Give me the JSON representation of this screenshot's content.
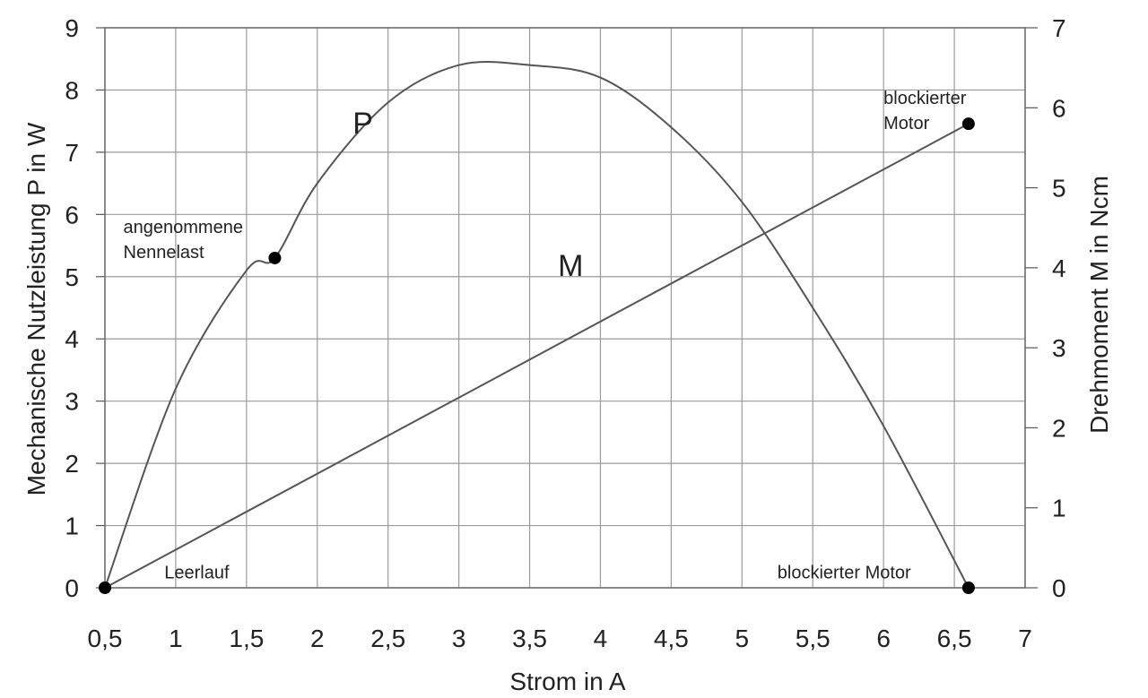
{
  "chart_data": {
    "type": "line",
    "xlabel": "Strom in A",
    "ylabel_left": "Mechanische Nutzleistung P in W",
    "ylabel_right": "Drehmoment M in Ncm",
    "xlim": [
      0.5,
      7
    ],
    "ylim_left": [
      0,
      9
    ],
    "ylim_right": [
      0,
      7
    ],
    "grid": true,
    "x_ticks": [
      {
        "value": 0.5,
        "label": "0,5"
      },
      {
        "value": 1,
        "label": "1"
      },
      {
        "value": 1.5,
        "label": "1,5"
      },
      {
        "value": 2,
        "label": "2"
      },
      {
        "value": 2.5,
        "label": "2,5"
      },
      {
        "value": 3,
        "label": "3"
      },
      {
        "value": 3.5,
        "label": "3,5"
      },
      {
        "value": 4,
        "label": "4"
      },
      {
        "value": 4.5,
        "label": "4,5"
      },
      {
        "value": 5,
        "label": "5"
      },
      {
        "value": 5.5,
        "label": "5,5"
      },
      {
        "value": 6,
        "label": "6"
      },
      {
        "value": 6.5,
        "label": "6,5"
      },
      {
        "value": 7,
        "label": "7"
      }
    ],
    "y_ticks_left": [
      {
        "value": 0,
        "label": "0"
      },
      {
        "value": 1,
        "label": "1"
      },
      {
        "value": 2,
        "label": "2"
      },
      {
        "value": 3,
        "label": "3"
      },
      {
        "value": 4,
        "label": "4"
      },
      {
        "value": 5,
        "label": "5"
      },
      {
        "value": 6,
        "label": "6"
      },
      {
        "value": 7,
        "label": "7"
      },
      {
        "value": 8,
        "label": "8"
      },
      {
        "value": 9,
        "label": "9"
      }
    ],
    "y_ticks_right": [
      {
        "value": 0,
        "label": "0"
      },
      {
        "value": 1,
        "label": "1"
      },
      {
        "value": 2,
        "label": "2"
      },
      {
        "value": 3,
        "label": "3"
      },
      {
        "value": 4,
        "label": "4"
      },
      {
        "value": 5,
        "label": "5"
      },
      {
        "value": 6,
        "label": "6"
      },
      {
        "value": 7,
        "label": "7"
      }
    ],
    "series": [
      {
        "name": "P",
        "axis": "left",
        "shape": "parabola",
        "x": [
          0.5,
          1.0,
          1.5,
          1.7,
          2.0,
          2.5,
          3.0,
          3.5,
          4.0,
          4.5,
          5.0,
          5.5,
          6.0,
          6.6
        ],
        "y": [
          0.0,
          3.2,
          5.1,
          5.3,
          6.5,
          7.8,
          8.4,
          8.4,
          8.2,
          7.4,
          6.2,
          4.5,
          2.6,
          0.0
        ],
        "label_pos": {
          "x": 2.25,
          "y": 7.3
        }
      },
      {
        "name": "M",
        "axis": "right",
        "shape": "linear",
        "x": [
          0.5,
          6.6
        ],
        "y": [
          0.0,
          5.8
        ],
        "label_pos": {
          "x": 3.7,
          "y": 3.9
        }
      }
    ],
    "markers": [
      {
        "x": 0.5,
        "y": 0.0,
        "axis": "left"
      },
      {
        "x": 1.7,
        "y": 5.3,
        "axis": "left"
      },
      {
        "x": 6.6,
        "y": 0.0,
        "axis": "left"
      },
      {
        "x": 6.6,
        "y": 5.8,
        "axis": "right"
      }
    ],
    "annotations": [
      {
        "lines": [
          "angenommene",
          "Nennelast"
        ],
        "x": 0.63,
        "y": 5.7,
        "axis": "left"
      },
      {
        "lines": [
          "Leerlauf"
        ],
        "x": 0.92,
        "y": 0.15,
        "axis": "left"
      },
      {
        "lines": [
          "blockierter Motor"
        ],
        "x": 5.25,
        "y": 0.15,
        "axis": "left"
      },
      {
        "lines": [
          "blockierter",
          "Motor"
        ],
        "x": 6.0,
        "y": 6.05,
        "axis": "right"
      }
    ]
  }
}
